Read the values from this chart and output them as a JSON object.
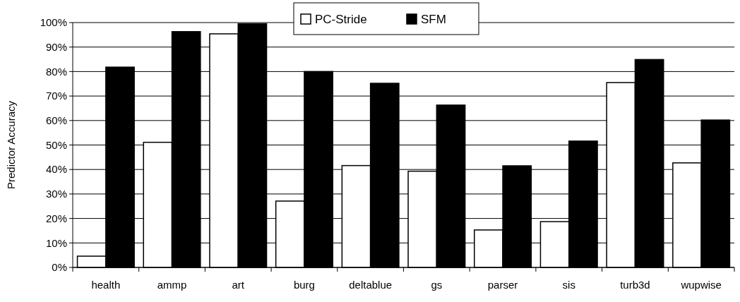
{
  "chart_data": {
    "type": "bar",
    "ylabel": "Predictor Accuracy",
    "categories": [
      "health",
      "ammp",
      "art",
      "burg",
      "deltablue",
      "gs",
      "parser",
      "sis",
      "turb3d",
      "wupwise"
    ],
    "series": [
      {
        "name": "PC-Stride",
        "color": "#ffffff",
        "values": [
          4.6,
          51.1,
          95.4,
          27.1,
          41.6,
          39.3,
          15.3,
          18.7,
          75.5,
          42.7
        ]
      },
      {
        "name": "SFM",
        "color": "#000000",
        "values": [
          81.8,
          96.3,
          99.5,
          80.0,
          75.2,
          66.3,
          41.5,
          51.6,
          84.9,
          60.2
        ]
      }
    ],
    "ylim": [
      0,
      100
    ],
    "yticks": [
      {
        "value": 0,
        "label": "0%"
      },
      {
        "value": 10,
        "label": "10%"
      },
      {
        "value": 20,
        "label": "20%"
      },
      {
        "value": 30,
        "label": "30%"
      },
      {
        "value": 40,
        "label": "40%"
      },
      {
        "value": 50,
        "label": "50%"
      },
      {
        "value": 60,
        "label": "60%"
      },
      {
        "value": 70,
        "label": "70%"
      },
      {
        "value": 80,
        "label": "80%"
      },
      {
        "value": 90,
        "label": "90%"
      },
      {
        "value": 100,
        "label": "100%"
      }
    ],
    "grid": "y",
    "legend": "top"
  }
}
